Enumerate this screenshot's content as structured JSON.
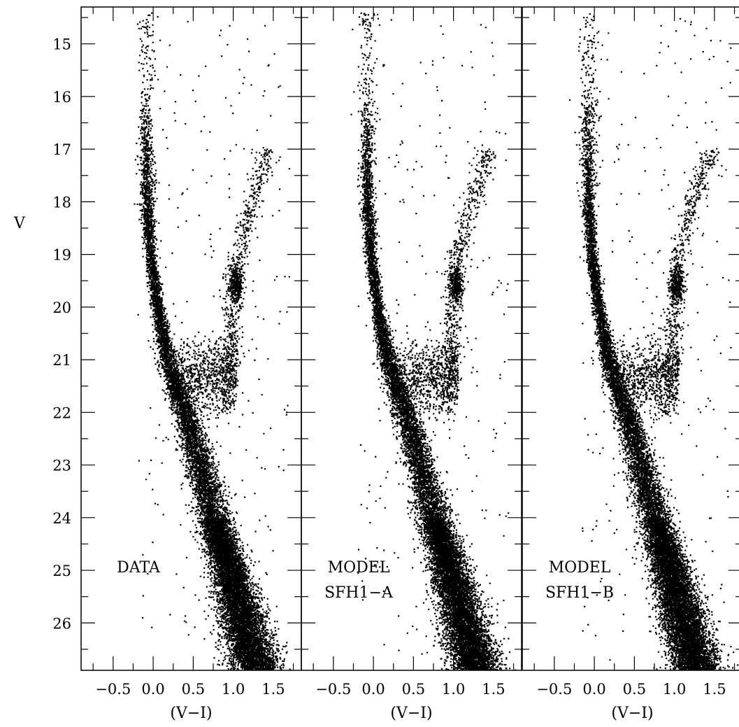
{
  "chart_data": [
    {
      "type": "scatter",
      "panel": "left",
      "label_lines": [
        "DATA"
      ],
      "xlabel": "(V−I)",
      "ylabel": "V",
      "xlim": [
        -0.9,
        1.85
      ],
      "ylim": [
        26.9,
        14.3
      ],
      "x_ticks": [
        "−0.5",
        "0.0",
        "0.5",
        "1.0",
        "1.5"
      ],
      "y_ticks": [
        "15",
        "16",
        "17",
        "18",
        "19",
        "20",
        "21",
        "22",
        "23",
        "24",
        "25",
        "26"
      ],
      "grid": false
    },
    {
      "type": "scatter",
      "panel": "middle",
      "label_lines": [
        "MODEL",
        "SFH1−A"
      ],
      "xlabel": "(V−I)",
      "ylabel": "",
      "xlim": [
        -0.9,
        1.85
      ],
      "ylim": [
        26.9,
        14.3
      ],
      "x_ticks": [
        "−0.5",
        "0.0",
        "0.5",
        "1.0",
        "1.5"
      ],
      "grid": false
    },
    {
      "type": "scatter",
      "panel": "right",
      "label_lines": [
        "MODEL",
        "SFH1−B"
      ],
      "xlabel": "(V−I)",
      "ylabel": "",
      "xlim": [
        -0.9,
        1.85
      ],
      "ylim": [
        26.9,
        14.3
      ],
      "x_ticks": [
        "−0.5",
        "0.0",
        "0.5",
        "1.0",
        "1.5"
      ],
      "grid": false
    }
  ]
}
